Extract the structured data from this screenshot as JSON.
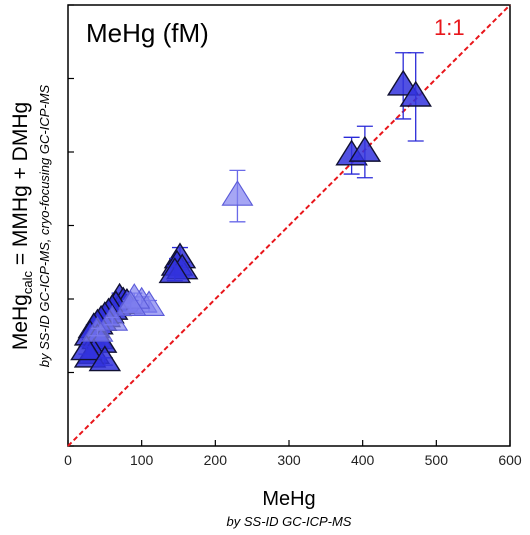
{
  "chart_data": {
    "type": "scatter",
    "title": "MeHg (fM)",
    "xlabel": "MeHg",
    "xlabel_sub": "by SS-ID GC-ICP-MS",
    "ylabel_main": "MeHg",
    "ylabel_subscript": "calc",
    "ylabel_rest": " = MMHg + DMHg",
    "ylabel_sub": "by SS-ID GC-ICP-MS, cryo-focusing GC-ICP-MS",
    "reference_line_label": "1:1",
    "xlim": [
      0,
      600
    ],
    "ylim": [
      0,
      600
    ],
    "x_ticks": [
      "0",
      "100",
      "200",
      "300",
      "400",
      "500",
      "600"
    ],
    "y_tick_labels_shown": false,
    "colors": {
      "marker_dark": "#3333dd",
      "marker_light": "#8080f0",
      "reference_line": "#e8161b"
    },
    "series": [
      {
        "x": [
          455,
          472,
          385,
          403,
          152,
          148,
          155,
          145,
          70,
          75,
          80,
          65,
          60,
          55,
          50,
          45,
          40,
          35,
          30,
          40,
          45,
          35,
          30,
          25,
          50
        ],
        "y": [
          490,
          475,
          395,
          400,
          255,
          245,
          240,
          235,
          200,
          195,
          193,
          190,
          185,
          180,
          175,
          170,
          165,
          160,
          150,
          145,
          140,
          125,
          120,
          130,
          115
        ],
        "yerr": [
          45,
          60,
          25,
          35,
          15,
          10,
          10,
          10,
          8,
          8,
          6,
          8,
          5,
          5,
          5,
          5,
          5,
          5,
          5,
          5,
          5,
          5,
          5,
          5,
          5
        ],
        "style": "dark"
      },
      {
        "x": [
          230,
          100,
          110,
          90,
          85,
          60,
          40
        ],
        "y": [
          340,
          195,
          190,
          200,
          190,
          170,
          155
        ],
        "yerr": [
          35,
          8,
          8,
          8,
          8,
          5,
          5
        ],
        "style": "light"
      }
    ]
  }
}
